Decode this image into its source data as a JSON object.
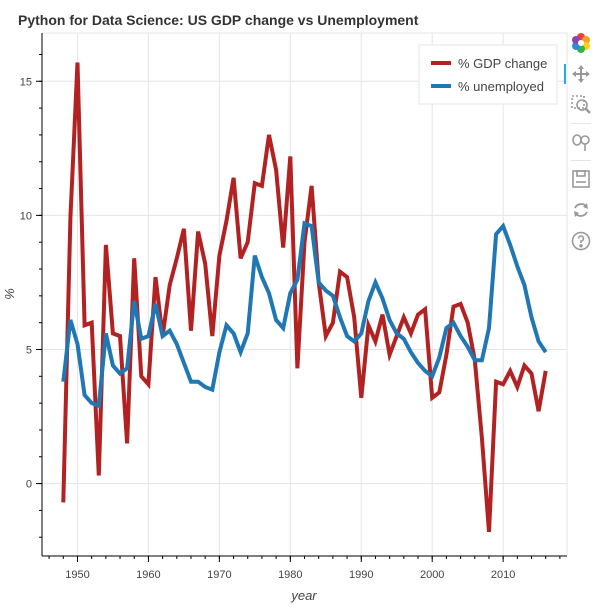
{
  "chart_data": {
    "type": "line",
    "title": "Python for Data Science: US  GDP change vs Unemployment",
    "xlabel": "year",
    "ylabel": "%",
    "xlim": [
      1945,
      2019
    ],
    "ylim": [
      -2.7,
      16.8
    ],
    "xticks": [
      "1950",
      "1960",
      "1970",
      "1980",
      "1990",
      "2000",
      "2010"
    ],
    "yticks": [
      "0",
      "5",
      "10",
      "15"
    ],
    "grid": true,
    "legend_position": "top-right",
    "x": [
      1948,
      1949,
      1950,
      1951,
      1952,
      1953,
      1954,
      1955,
      1956,
      1957,
      1958,
      1959,
      1960,
      1961,
      1962,
      1963,
      1964,
      1965,
      1966,
      1967,
      1968,
      1969,
      1970,
      1971,
      1972,
      1973,
      1974,
      1975,
      1976,
      1977,
      1978,
      1979,
      1980,
      1981,
      1982,
      1983,
      1984,
      1985,
      1986,
      1987,
      1988,
      1989,
      1990,
      1991,
      1992,
      1993,
      1994,
      1995,
      1996,
      1997,
      1998,
      1999,
      2000,
      2001,
      2002,
      2003,
      2004,
      2005,
      2006,
      2007,
      2008,
      2009,
      2010,
      2011,
      2012,
      2013,
      2014,
      2015,
      2016
    ],
    "series": [
      {
        "name": "% GDP change",
        "color": "#b22222",
        "values": [
          -0.7,
          9.9,
          15.7,
          5.9,
          6.0,
          0.3,
          8.9,
          5.6,
          5.5,
          1.5,
          8.4,
          4.0,
          3.7,
          7.7,
          5.5,
          7.4,
          8.4,
          9.5,
          5.7,
          9.4,
          8.2,
          5.5,
          8.5,
          9.8,
          11.4,
          8.4,
          9.0,
          11.2,
          11.1,
          13.0,
          11.7,
          8.8,
          12.2,
          4.3,
          9.0,
          11.1,
          7.5,
          5.5,
          6.0,
          7.9,
          7.7,
          6.2,
          3.2,
          5.9,
          5.3,
          6.3,
          4.8,
          5.5,
          6.2,
          5.6,
          6.3,
          6.5,
          3.2,
          3.4,
          4.8,
          6.6,
          6.7,
          6.0,
          4.6,
          1.7,
          -1.8,
          3.8,
          3.7,
          4.2,
          3.6,
          4.4,
          4.1,
          2.7,
          4.2
        ]
      },
      {
        "name": "% unemployed",
        "color": "#1f77b4",
        "values": [
          3.8,
          6.1,
          5.2,
          3.3,
          3.0,
          2.9,
          5.6,
          4.4,
          4.1,
          4.3,
          6.8,
          5.4,
          5.5,
          6.7,
          5.5,
          5.7,
          5.2,
          4.5,
          3.8,
          3.8,
          3.6,
          3.5,
          4.9,
          5.9,
          5.6,
          4.9,
          5.6,
          8.5,
          7.7,
          7.1,
          6.1,
          5.8,
          7.1,
          7.6,
          9.7,
          9.6,
          7.5,
          7.2,
          7.0,
          6.2,
          5.5,
          5.3,
          5.6,
          6.8,
          7.5,
          6.9,
          6.1,
          5.6,
          5.4,
          4.9,
          4.5,
          4.2,
          4.0,
          4.7,
          5.8,
          6.0,
          5.5,
          5.1,
          4.6,
          4.6,
          5.8,
          9.3,
          9.6,
          8.9,
          8.1,
          7.4,
          6.2,
          5.3,
          4.9
        ]
      }
    ]
  },
  "toolbar": {
    "tools": [
      "bokeh-logo-icon",
      "pan-icon",
      "box-zoom-icon",
      "wheel-zoom-icon",
      "save-icon",
      "reset-icon",
      "help-icon"
    ]
  }
}
